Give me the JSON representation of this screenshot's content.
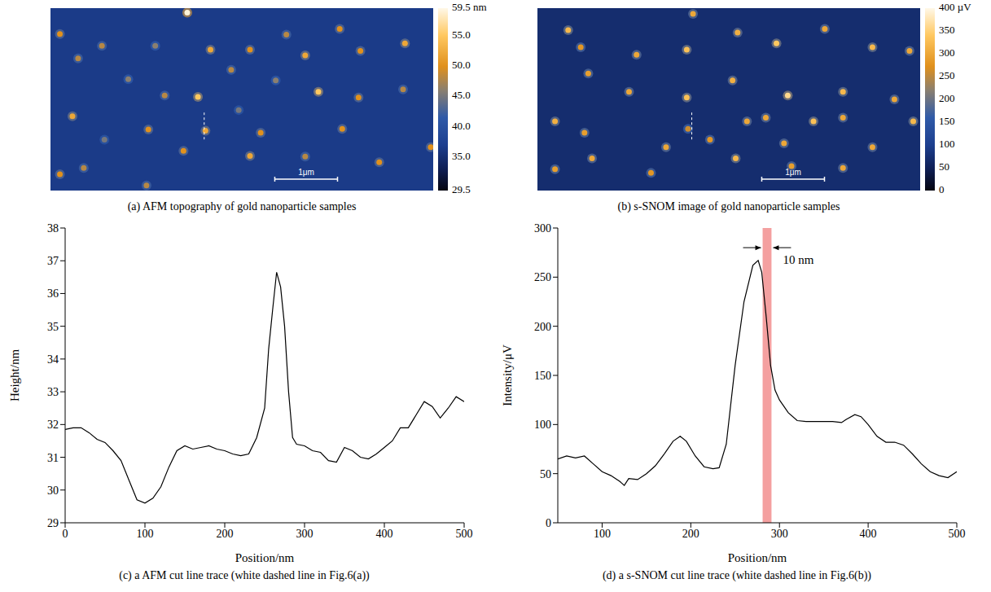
{
  "chart_data": [
    {
      "type": "image",
      "caption": "(a) AFM topography of gold nanoparticle samples",
      "xlim": [
        0,
        6.1
      ],
      "ylim": [
        0,
        2.9
      ],
      "background": 36.5,
      "colorbar": {
        "range": [
          29.5,
          59.5
        ],
        "ticks": [
          {
            "value": 59.5,
            "label": "59.5 nm"
          },
          {
            "value": 55,
            "label": "55.0"
          },
          {
            "value": 50,
            "label": "50.0"
          },
          {
            "value": 45,
            "label": "45.0"
          },
          {
            "value": 40,
            "label": "40.0"
          },
          {
            "value": 35,
            "label": "35.0"
          },
          29.5
        ]
      },
      "scale_bar": {
        "label": "1μm",
        "length": 1
      },
      "cut_line": {
        "x": 2.45,
        "y": [
          1.66,
          2.12
        ]
      },
      "particles": [
        {
          "x": 2.18,
          "y": 0.07,
          "value": 59
        },
        {
          "x": 0.15,
          "y": 0.41,
          "value": 50
        },
        {
          "x": 0.82,
          "y": 0.6,
          "value": 48
        },
        {
          "x": 1.67,
          "y": 0.6,
          "value": 46
        },
        {
          "x": 2.55,
          "y": 0.66,
          "value": 52
        },
        {
          "x": 3.18,
          "y": 0.66,
          "value": 50
        },
        {
          "x": 3.76,
          "y": 0.42,
          "value": 48
        },
        {
          "x": 4.06,
          "y": 0.75,
          "value": 52
        },
        {
          "x": 4.61,
          "y": 0.33,
          "value": 50
        },
        {
          "x": 4.94,
          "y": 0.68,
          "value": 50
        },
        {
          "x": 5.65,
          "y": 0.56,
          "value": 52
        },
        {
          "x": 0.44,
          "y": 0.8,
          "value": 48
        },
        {
          "x": 1.24,
          "y": 1.13,
          "value": 46
        },
        {
          "x": 2.88,
          "y": 0.98,
          "value": 48
        },
        {
          "x": 1.82,
          "y": 1.39,
          "value": 48
        },
        {
          "x": 2.35,
          "y": 1.41,
          "value": 55
        },
        {
          "x": 3.59,
          "y": 1.15,
          "value": 46
        },
        {
          "x": 4.27,
          "y": 1.33,
          "value": 55
        },
        {
          "x": 4.91,
          "y": 1.42,
          "value": 50
        },
        {
          "x": 5.62,
          "y": 1.29,
          "value": 48
        },
        {
          "x": 0.35,
          "y": 1.72,
          "value": 52
        },
        {
          "x": 1.56,
          "y": 1.93,
          "value": 50
        },
        {
          "x": 2.47,
          "y": 1.95,
          "value": 52
        },
        {
          "x": 3.0,
          "y": 1.62,
          "value": 45
        },
        {
          "x": 3.35,
          "y": 1.98,
          "value": 50
        },
        {
          "x": 4.65,
          "y": 1.92,
          "value": 50
        },
        {
          "x": 0.86,
          "y": 2.09,
          "value": 45
        },
        {
          "x": 3.18,
          "y": 2.35,
          "value": 52
        },
        {
          "x": 2.12,
          "y": 2.27,
          "value": 50
        },
        {
          "x": 4.06,
          "y": 2.36,
          "value": 48
        },
        {
          "x": 6.06,
          "y": 2.21,
          "value": 50
        },
        {
          "x": 0.15,
          "y": 2.64,
          "value": 50
        },
        {
          "x": 0.53,
          "y": 2.54,
          "value": 48
        },
        {
          "x": 1.53,
          "y": 2.82,
          "value": 48
        },
        {
          "x": 5.24,
          "y": 2.45,
          "value": 50
        }
      ]
    },
    {
      "type": "image",
      "caption": "(b) s-SNOM image of gold nanoparticle samples",
      "xlim": [
        0,
        6.1
      ],
      "ylim": [
        0,
        2.9
      ],
      "background": 70,
      "colorbar": {
        "range": [
          0,
          400
        ],
        "ticks": [
          {
            "value": 400,
            "label": "400 µV"
          },
          350,
          300,
          250,
          200,
          150,
          100,
          50,
          0
        ]
      },
      "scale_bar": {
        "label": "1μm",
        "length": 1
      },
      "cut_line": {
        "x": 2.46,
        "y": [
          1.66,
          2.12
        ]
      },
      "particles": [
        {
          "x": 2.48,
          "y": 0.09,
          "value": 300
        },
        {
          "x": 0.49,
          "y": 0.35,
          "value": 320
        },
        {
          "x": 0.69,
          "y": 0.62,
          "value": 280
        },
        {
          "x": 1.58,
          "y": 0.74,
          "value": 300
        },
        {
          "x": 2.38,
          "y": 0.66,
          "value": 330
        },
        {
          "x": 3.19,
          "y": 0.39,
          "value": 310
        },
        {
          "x": 3.81,
          "y": 0.56,
          "value": 340
        },
        {
          "x": 4.58,
          "y": 0.33,
          "value": 300
        },
        {
          "x": 5.34,
          "y": 0.62,
          "value": 320
        },
        {
          "x": 5.93,
          "y": 0.68,
          "value": 300
        },
        {
          "x": 0.81,
          "y": 1.04,
          "value": 290
        },
        {
          "x": 1.46,
          "y": 1.33,
          "value": 300
        },
        {
          "x": 2.38,
          "y": 1.42,
          "value": 330
        },
        {
          "x": 3.11,
          "y": 1.15,
          "value": 310
        },
        {
          "x": 3.64,
          "y": 1.74,
          "value": 300
        },
        {
          "x": 3.99,
          "y": 1.39,
          "value": 360
        },
        {
          "x": 4.87,
          "y": 1.33,
          "value": 320
        },
        {
          "x": 5.69,
          "y": 1.45,
          "value": 300
        },
        {
          "x": 0.28,
          "y": 1.8,
          "value": 310
        },
        {
          "x": 0.75,
          "y": 1.98,
          "value": 290
        },
        {
          "x": 2.4,
          "y": 1.92,
          "value": 260
        },
        {
          "x": 3.34,
          "y": 1.8,
          "value": 300
        },
        {
          "x": 4.4,
          "y": 1.8,
          "value": 330
        },
        {
          "x": 4.87,
          "y": 1.74,
          "value": 300
        },
        {
          "x": 2.05,
          "y": 2.21,
          "value": 300
        },
        {
          "x": 2.75,
          "y": 2.09,
          "value": 280
        },
        {
          "x": 3.93,
          "y": 2.15,
          "value": 300
        },
        {
          "x": 5.99,
          "y": 1.8,
          "value": 320
        },
        {
          "x": 5.34,
          "y": 2.21,
          "value": 300
        },
        {
          "x": 0.28,
          "y": 2.56,
          "value": 290
        },
        {
          "x": 0.87,
          "y": 2.39,
          "value": 300
        },
        {
          "x": 1.81,
          "y": 2.62,
          "value": 280
        },
        {
          "x": 3.16,
          "y": 2.39,
          "value": 320
        },
        {
          "x": 4.05,
          "y": 2.51,
          "value": 290
        },
        {
          "x": 4.87,
          "y": 2.54,
          "value": 300
        }
      ]
    },
    {
      "type": "line",
      "caption": "(c) a AFM cut line trace (white dashed line in Fig.6(a))",
      "x_label": "Position/nm",
      "y_label": "Height/nm",
      "xlim": [
        0,
        500
      ],
      "xticks": [
        0,
        100,
        200,
        300,
        400,
        500
      ],
      "ylim": [
        29,
        38
      ],
      "yticks": [
        29,
        30,
        31,
        32,
        33,
        34,
        35,
        36,
        37,
        38
      ],
      "grid": false,
      "color": "#000000",
      "x": [
        0,
        10,
        20,
        30,
        40,
        50,
        60,
        70,
        80,
        90,
        100,
        110,
        120,
        130,
        140,
        150,
        160,
        170,
        180,
        190,
        200,
        210,
        220,
        230,
        240,
        250,
        255,
        260,
        265,
        270,
        275,
        280,
        285,
        290,
        300,
        310,
        320,
        330,
        340,
        350,
        360,
        370,
        380,
        390,
        400,
        410,
        420,
        430,
        440,
        450,
        460,
        470,
        480,
        490,
        500
      ],
      "values": [
        31.85,
        31.9,
        31.9,
        31.75,
        31.55,
        31.45,
        31.2,
        30.9,
        30.3,
        29.7,
        29.6,
        29.75,
        30.1,
        30.7,
        31.2,
        31.35,
        31.25,
        31.3,
        31.35,
        31.25,
        31.2,
        31.1,
        31.05,
        31.1,
        31.6,
        32.5,
        34.3,
        35.5,
        36.65,
        36.2,
        35.0,
        33.0,
        31.6,
        31.4,
        31.35,
        31.2,
        31.15,
        30.9,
        30.85,
        31.3,
        31.2,
        31.0,
        30.95,
        31.1,
        31.3,
        31.5,
        31.9,
        31.9,
        32.3,
        32.7,
        32.55,
        32.2,
        32.5,
        32.85,
        32.7
      ]
    },
    {
      "type": "line",
      "caption": "(d) a s-SNOM cut line trace (white dashed line in Fig.6(b))",
      "x_label": "Position/nm",
      "y_label": "Intensity/μV",
      "xlim": [
        50,
        500
      ],
      "xticks": [
        100,
        200,
        300,
        400,
        500
      ],
      "ylim": [
        0,
        300
      ],
      "yticks": [
        0,
        50,
        100,
        150,
        200,
        250,
        300
      ],
      "grid": false,
      "color": "#000000",
      "annotation": {
        "text": "10 nm",
        "x": [
          281,
          291
        ],
        "y": 280,
        "color": "#f08080"
      },
      "x": [
        50,
        60,
        70,
        80,
        90,
        100,
        110,
        120,
        125,
        130,
        140,
        150,
        160,
        170,
        180,
        188,
        195,
        205,
        215,
        225,
        232,
        240,
        250,
        260,
        270,
        276,
        280,
        285,
        290,
        295,
        300,
        310,
        320,
        330,
        340,
        350,
        360,
        370,
        375,
        385,
        392,
        400,
        410,
        420,
        430,
        440,
        450,
        460,
        470,
        480,
        490,
        500
      ],
      "values": [
        65,
        68,
        66,
        68,
        60,
        52,
        48,
        42,
        38,
        45,
        44,
        50,
        58,
        70,
        83,
        88,
        83,
        68,
        57,
        55,
        56,
        80,
        160,
        225,
        262,
        267,
        255,
        210,
        160,
        135,
        125,
        112,
        104,
        103,
        103,
        103,
        103,
        102,
        105,
        110,
        108,
        100,
        88,
        82,
        82,
        79,
        70,
        60,
        52,
        48,
        46,
        52
      ]
    }
  ]
}
